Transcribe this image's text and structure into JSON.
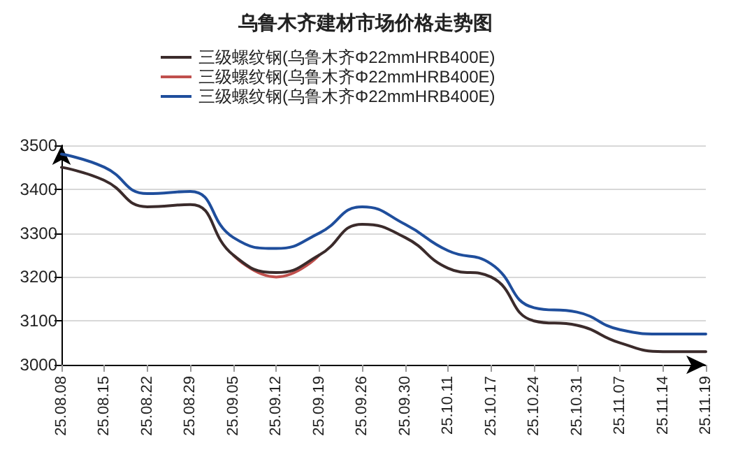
{
  "chart_data": {
    "type": "line",
    "title": "乌鲁木齐建材市场价格走势图",
    "categories": [
      "25.08.08",
      "25.08.15",
      "25.08.22",
      "25.08.29",
      "25.09.05",
      "25.09.12",
      "25.09.19",
      "25.09.26",
      "25.09.30",
      "25.10.11",
      "25.10.17",
      "25.10.24",
      "25.10.31",
      "25.11.07",
      "25.11.14",
      "25.11.19"
    ],
    "series": [
      {
        "name": "三级螺纹钢(乌鲁木齐Φ22mmHRB400E)",
        "color": "#3b2b2b",
        "values": [
          3450,
          3420,
          3360,
          3365,
          3250,
          3210,
          3250,
          3320,
          3290,
          3220,
          3200,
          3100,
          3090,
          3050,
          3030,
          3030
        ]
      },
      {
        "name": "三级螺纹钢(乌鲁木齐Φ22mmHRB400E)",
        "color": "#c0504d",
        "values": [
          null,
          null,
          null,
          null,
          3250,
          3200,
          3250,
          null,
          null,
          null,
          null,
          null,
          null,
          null,
          null,
          null
        ]
      },
      {
        "name": "三级螺纹钢(乌鲁木齐Φ22mmHRB400E)",
        "color": "#1f4e9c",
        "values": [
          3480,
          3450,
          3390,
          3395,
          3290,
          3265,
          3300,
          3360,
          3320,
          3260,
          3230,
          3130,
          3120,
          3080,
          3070,
          3070
        ]
      }
    ],
    "ylim": [
      3000,
      3500
    ],
    "yticks": [
      3000,
      3100,
      3200,
      3300,
      3400,
      3500
    ],
    "grid": "y",
    "legend": "top",
    "marker": "none",
    "line_style": "solid"
  }
}
